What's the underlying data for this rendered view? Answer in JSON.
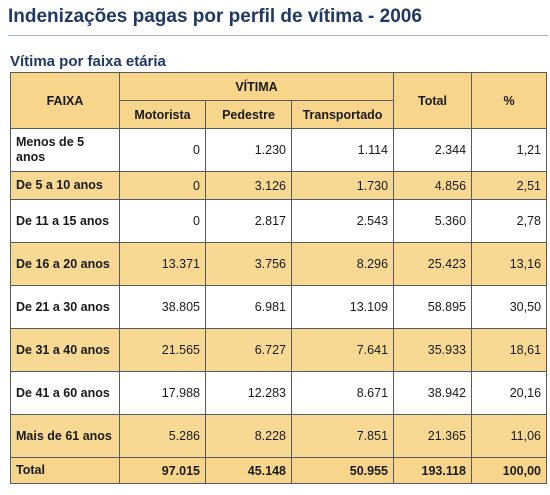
{
  "title": "Indenizações pagas por perfil de vítima - 2006",
  "subtitle": "Vítima por faixa etária",
  "table": {
    "headers": {
      "faixa": "FAIXA",
      "vitima": "VÍTIMA",
      "motorista": "Motorista",
      "pedestre": "Pedestre",
      "transportado": "Transportado",
      "total": "Total",
      "percent": "%"
    },
    "rows": [
      {
        "faixa": "Menos de 5 anos",
        "motorista": "0",
        "pedestre": "1.230",
        "transportado": "1.114",
        "total": "2.344",
        "percent": "1,21"
      },
      {
        "faixa": "De 5 a 10 anos",
        "motorista": "0",
        "pedestre": "3.126",
        "transportado": "1.730",
        "total": "4.856",
        "percent": "2,51"
      },
      {
        "faixa": "De 11 a 15 anos",
        "motorista": "0",
        "pedestre": "2.817",
        "transportado": "2.543",
        "total": "5.360",
        "percent": "2,78"
      },
      {
        "faixa": "De 16 a 20 anos",
        "motorista": "13.371",
        "pedestre": "3.756",
        "transportado": "8.296",
        "total": "25.423",
        "percent": "13,16"
      },
      {
        "faixa": "De 21 a 30 anos",
        "motorista": "38.805",
        "pedestre": "6.981",
        "transportado": "13.109",
        "total": "58.895",
        "percent": "30,50"
      },
      {
        "faixa": "De 31 a 40 anos",
        "motorista": "21.565",
        "pedestre": "6.727",
        "transportado": "7.641",
        "total": "35.933",
        "percent": "18,61"
      },
      {
        "faixa": "De 41 a 60 anos",
        "motorista": "17.988",
        "pedestre": "12.283",
        "transportado": "8.671",
        "total": "38.942",
        "percent": "20,16"
      },
      {
        "faixa": "Mais de 61 anos",
        "motorista": "5.286",
        "pedestre": "8.228",
        "transportado": "7.851",
        "total": "21.365",
        "percent": "11,06"
      }
    ],
    "total_row": {
      "faixa": "Total",
      "motorista": "97.015",
      "pedestre": "45.148",
      "transportado": "50.955",
      "total": "193.118",
      "percent": "100,00"
    }
  },
  "colors": {
    "header_bg": "#f7d68b",
    "gold_row": "#f8d994",
    "white_row": "#ffffff",
    "title": "#1f3864"
  }
}
